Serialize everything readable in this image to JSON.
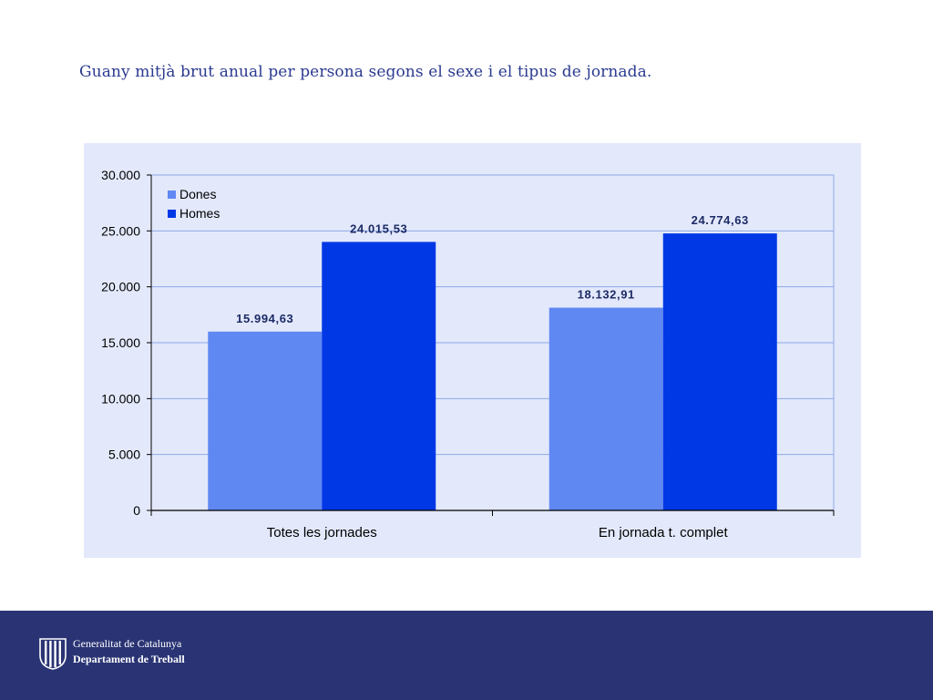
{
  "slide": {
    "title": "Guany mitjà brut anual per persona segons el sexe i el tipus de jornada."
  },
  "footer": {
    "org": "Generalitat de Catalunya",
    "department": "Departament de Treball",
    "logo_icon": "catalan-flag-emblem-icon"
  },
  "chart_data": {
    "type": "bar",
    "categories": [
      "Totes les jornades",
      "En jornada t. complet"
    ],
    "series": [
      {
        "name": "Dones",
        "values": [
          15994.63,
          18132.91
        ],
        "labels": [
          "15.994,63",
          "18.132,91"
        ],
        "color": "#6088f2"
      },
      {
        "name": "Homes",
        "values": [
          24015.53,
          24774.63
        ],
        "labels": [
          "24.015,53",
          "24.774,63"
        ],
        "color": "#0038e6"
      }
    ],
    "ylim": [
      0,
      30000
    ],
    "yticks": [
      0,
      5000,
      10000,
      15000,
      20000,
      25000,
      30000
    ],
    "ytick_labels": [
      "0",
      "5.000",
      "10.000",
      "15.000",
      "20.000",
      "25.000",
      "30.000"
    ],
    "xlabel": "",
    "ylabel": "",
    "grid": true,
    "legend": "top-left",
    "colors": {
      "panel": "#e3e9fb",
      "grid": "#8fa8e6",
      "axis": "#000000",
      "data_label": "#1c2a66"
    }
  }
}
